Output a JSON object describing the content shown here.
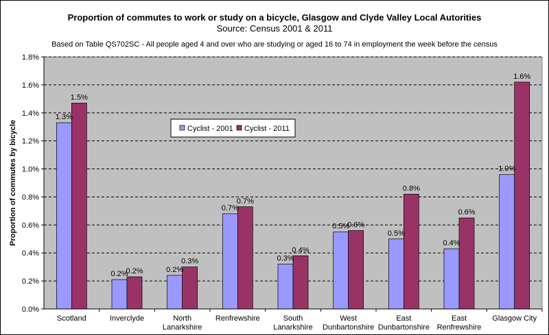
{
  "chart_data": {
    "type": "bar",
    "title": "Proportion of commutes  to work or study on a bicycle, Glasgow and Clyde Valley Local Autorities",
    "subtitle": "Source: Census 2001 & 2011",
    "note": "Based on Table QS702SC - All people aged 4 and over who are studying or aged 16 to 74 in employment  the week before the census",
    "ylabel": "Proportion of commutes by bicycle",
    "xlabel": "",
    "ylim": [
      0,
      0.018
    ],
    "yticks": [
      "0.0%",
      "0.2%",
      "0.4%",
      "0.6%",
      "0.8%",
      "1.0%",
      "1.2%",
      "1.4%",
      "1.6%",
      "1.8%"
    ],
    "grid": true,
    "legend_position": "upper-center",
    "categories": [
      [
        "Scotland"
      ],
      [
        "Inverclyde"
      ],
      [
        "North",
        "Lanarkshire"
      ],
      [
        "Renfrewshire"
      ],
      [
        "South",
        "Lanarkshire"
      ],
      [
        "West",
        "Dunbartonshire"
      ],
      [
        "East",
        "Dunbartonshire"
      ],
      [
        "East",
        "Renfrewshire"
      ],
      [
        "Glasgow City"
      ]
    ],
    "series": [
      {
        "name": "Cyclist - 2001",
        "color": "#9999ff",
        "values": [
          0.0133,
          0.0021,
          0.0024,
          0.0068,
          0.0032,
          0.0055,
          0.005,
          0.0043,
          0.0096
        ],
        "labels": [
          "1.3%",
          "0.2%",
          "0.2%",
          "0.7%",
          "0.3%",
          "0.5%",
          "0.5%",
          "0.4%",
          "1.0%"
        ]
      },
      {
        "name": "Cyclist - 2011",
        "color": "#993366",
        "values": [
          0.0147,
          0.0023,
          0.003,
          0.0073,
          0.0038,
          0.0056,
          0.0082,
          0.0065,
          0.0162
        ],
        "labels": [
          "1.5%",
          "0.2%",
          "0.3%",
          "0.7%",
          "0.4%",
          "0.6%",
          "0.8%",
          "0.6%",
          "1.6%"
        ]
      }
    ],
    "colors": {
      "plot_background": "#c0c0c0",
      "gridline": "#000000"
    }
  }
}
